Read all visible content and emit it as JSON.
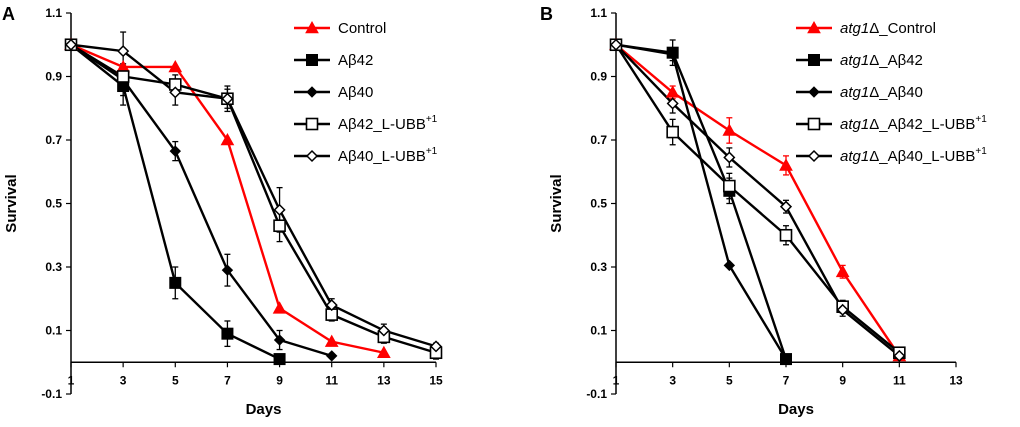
{
  "figure": {
    "panels": [
      "A",
      "B"
    ]
  },
  "chart_data": [
    {
      "type": "line",
      "panel": "A",
      "title": "",
      "xlabel": "Days",
      "ylabel": "Survival",
      "xlim": [
        1,
        15
      ],
      "ylim": [
        -0.1,
        1.1
      ],
      "xticks": [
        1,
        3,
        5,
        7,
        9,
        11,
        13,
        15
      ],
      "yticks": [
        -0.1,
        0.1,
        0.3,
        0.5,
        0.7,
        0.9,
        1.1
      ],
      "ytick_labels": [
        "-0.1",
        "0.1",
        "0.3",
        "0.5",
        "0.7",
        "0.9",
        "1.1"
      ],
      "legend_position": "top-right",
      "series": [
        {
          "name": "Control",
          "italic": "",
          "rest": "Control",
          "sup": "",
          "color": "#ff0000",
          "marker": "triangle-filled",
          "x": [
            1,
            3,
            5,
            7,
            9,
            11,
            13
          ],
          "y": [
            1.0,
            0.93,
            0.93,
            0.7,
            0.17,
            0.065,
            0.03
          ],
          "err": [
            0,
            0,
            0,
            0,
            0,
            0,
            0
          ]
        },
        {
          "name": "Aβ42",
          "italic": "",
          "rest": "Aβ42",
          "sup": "",
          "color": "#000000",
          "marker": "square-filled",
          "x": [
            1,
            3,
            5,
            7,
            9
          ],
          "y": [
            1.0,
            0.87,
            0.25,
            0.09,
            0.01
          ],
          "err": [
            0,
            0.06,
            0.05,
            0.04,
            0
          ]
        },
        {
          "name": "Aβ40",
          "italic": "",
          "rest": "Aβ40",
          "sup": "",
          "color": "#000000",
          "marker": "diamond-filled",
          "x": [
            1,
            3,
            5,
            7,
            9,
            11
          ],
          "y": [
            1.0,
            0.89,
            0.665,
            0.29,
            0.07,
            0.02
          ],
          "err": [
            0,
            0.05,
            0.03,
            0.05,
            0.03,
            0
          ]
        },
        {
          "name": "Aβ42_L-UBB+1",
          "italic": "",
          "rest": "Aβ42_L-UBB",
          "sup": "+1",
          "color": "#000000",
          "marker": "square-open",
          "x": [
            1,
            3,
            5,
            7,
            9,
            11,
            13,
            15
          ],
          "y": [
            1.0,
            0.9,
            0.875,
            0.83,
            0.43,
            0.15,
            0.08,
            0.03
          ],
          "err": [
            0,
            0.03,
            0.03,
            0.03,
            0.05,
            0.02,
            0.02,
            0.02
          ]
        },
        {
          "name": "Aβ40_L-UBB+1",
          "italic": "",
          "rest": "Aβ40_L-UBB",
          "sup": "+1",
          "color": "#000000",
          "marker": "diamond-open",
          "x": [
            1,
            3,
            5,
            7,
            9,
            11,
            13,
            15
          ],
          "y": [
            1.0,
            0.98,
            0.85,
            0.83,
            0.48,
            0.18,
            0.1,
            0.05
          ],
          "err": [
            0,
            0.06,
            0.04,
            0.04,
            0.07,
            0.02,
            0.02,
            0.01
          ]
        }
      ]
    },
    {
      "type": "line",
      "panel": "B",
      "title": "",
      "xlabel": "Days",
      "ylabel": "Survival",
      "xlim": [
        1,
        13
      ],
      "ylim": [
        -0.1,
        1.1
      ],
      "xticks": [
        1,
        3,
        5,
        7,
        9,
        11,
        13
      ],
      "yticks": [
        -0.1,
        0.1,
        0.3,
        0.5,
        0.7,
        0.9,
        1.1
      ],
      "ytick_labels": [
        "-0.1",
        "0.1",
        "0.3",
        "0.5",
        "0.7",
        "0.9",
        "1.1"
      ],
      "legend_position": "top-right",
      "series": [
        {
          "name": "atg1Δ_Control",
          "italic": "atg1",
          "rest": "Δ_Control",
          "sup": "",
          "color": "#ff0000",
          "marker": "triangle-filled",
          "x": [
            1,
            3,
            5,
            7,
            9,
            11
          ],
          "y": [
            1.0,
            0.85,
            0.73,
            0.62,
            0.285,
            0.02
          ],
          "err": [
            0,
            0.02,
            0.04,
            0.03,
            0.02,
            0
          ]
        },
        {
          "name": "atg1Δ_Aβ42",
          "italic": "atg1",
          "rest": "Δ_Aβ42",
          "sup": "",
          "color": "#000000",
          "marker": "square-filled",
          "x": [
            1,
            3,
            5,
            7
          ],
          "y": [
            1.0,
            0.975,
            0.54,
            0.01
          ],
          "err": [
            0,
            0.04,
            0.04,
            0
          ]
        },
        {
          "name": "atg1Δ_Aβ40",
          "italic": "atg1",
          "rest": "Δ_Aβ40",
          "sup": "",
          "color": "#000000",
          "marker": "diamond-filled",
          "x": [
            1,
            3,
            5,
            7
          ],
          "y": [
            1.0,
            0.97,
            0.305,
            0.01
          ],
          "err": [
            0,
            0.02,
            0,
            0
          ]
        },
        {
          "name": "atg1Δ_Aβ42_L-UBB+1",
          "italic": "atg1",
          "rest": "Δ_Aβ42_L-UBB",
          "sup": "+1",
          "color": "#000000",
          "marker": "square-open",
          "x": [
            1,
            3,
            5,
            7,
            9,
            11
          ],
          "y": [
            1.0,
            0.725,
            0.555,
            0.4,
            0.175,
            0.03
          ],
          "err": [
            0,
            0.04,
            0.04,
            0.03,
            0.02,
            0
          ]
        },
        {
          "name": "atg1Δ_Aβ40_L-UBB+1",
          "italic": "atg1",
          "rest": "Δ_Aβ40_L-UBB",
          "sup": "+1",
          "color": "#000000",
          "marker": "diamond-open",
          "x": [
            1,
            3,
            5,
            7,
            9,
            11
          ],
          "y": [
            1.0,
            0.815,
            0.645,
            0.49,
            0.165,
            0.02
          ],
          "err": [
            0,
            0.03,
            0.03,
            0.02,
            0.02,
            0
          ]
        }
      ]
    }
  ]
}
